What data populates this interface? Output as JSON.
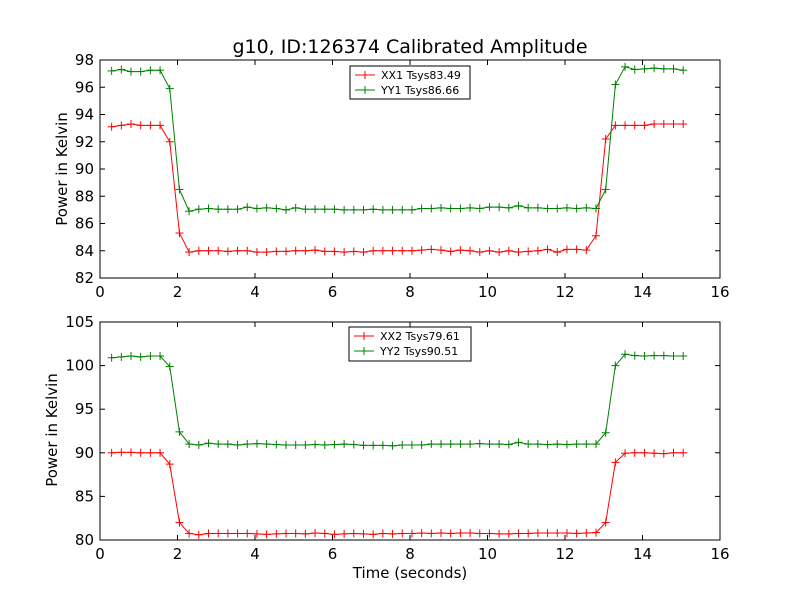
{
  "chart_data": [
    {
      "type": "line",
      "title": "g10, ID:126374 Calibrated Amplitude",
      "xlabel": "",
      "ylabel": "Power in Kelvin",
      "xlim": [
        0,
        16
      ],
      "ylim": [
        82,
        98
      ],
      "xticks": [
        "0",
        "2",
        "4",
        "6",
        "8",
        "10",
        "12",
        "14",
        "16"
      ],
      "yticks": [
        "82",
        "84",
        "86",
        "88",
        "90",
        "92",
        "94",
        "96",
        "98"
      ],
      "legend_position": "top-center",
      "x": [
        0.3,
        0.55,
        0.8,
        1.05,
        1.3,
        1.55,
        1.8,
        2.05,
        2.3,
        2.55,
        2.8,
        3.05,
        3.3,
        3.55,
        3.8,
        4.05,
        4.3,
        4.55,
        4.8,
        5.05,
        5.3,
        5.55,
        5.8,
        6.05,
        6.3,
        6.55,
        6.8,
        7.05,
        7.3,
        7.55,
        7.8,
        8.05,
        8.3,
        8.55,
        8.8,
        9.05,
        9.3,
        9.55,
        9.8,
        10.05,
        10.3,
        10.55,
        10.8,
        11.05,
        11.3,
        11.55,
        11.8,
        12.05,
        12.3,
        12.55,
        12.8,
        13.05,
        13.3,
        13.55,
        13.8,
        14.05,
        14.3,
        14.55,
        14.8,
        15.05
      ],
      "series": [
        {
          "name": "XX1 Tsys83.49",
          "color": "#ff0000",
          "values": [
            93.1,
            93.2,
            93.3,
            93.2,
            93.2,
            93.2,
            92.0,
            85.3,
            83.9,
            84.0,
            84.0,
            84.0,
            83.95,
            84.0,
            84.0,
            83.9,
            83.9,
            83.95,
            83.95,
            84.0,
            84.0,
            84.05,
            83.95,
            83.95,
            83.9,
            83.95,
            83.9,
            84.0,
            84.0,
            84.0,
            84.0,
            84.0,
            84.05,
            84.1,
            84.05,
            83.95,
            84.05,
            84.0,
            83.9,
            84.0,
            83.9,
            84.0,
            83.9,
            83.95,
            84.0,
            84.1,
            83.9,
            84.1,
            84.1,
            84.05,
            85.1,
            92.2,
            93.2,
            93.2,
            93.2,
            93.2,
            93.3,
            93.3,
            93.3,
            93.3
          ]
        },
        {
          "name": "YY1 Tsys86.66",
          "color": "#008000",
          "values": [
            97.2,
            97.3,
            97.15,
            97.15,
            97.25,
            97.25,
            95.9,
            88.5,
            86.9,
            87.05,
            87.1,
            87.05,
            87.05,
            87.05,
            87.2,
            87.1,
            87.15,
            87.1,
            87.0,
            87.15,
            87.05,
            87.05,
            87.05,
            87.05,
            87.0,
            87.0,
            87.0,
            87.05,
            87.0,
            87.0,
            87.0,
            87.0,
            87.1,
            87.1,
            87.15,
            87.1,
            87.1,
            87.15,
            87.1,
            87.2,
            87.2,
            87.15,
            87.3,
            87.15,
            87.15,
            87.1,
            87.1,
            87.15,
            87.1,
            87.15,
            87.1,
            88.5,
            96.2,
            97.5,
            97.3,
            97.35,
            97.4,
            97.35,
            97.35,
            97.25
          ]
        }
      ]
    },
    {
      "type": "line",
      "title": "",
      "xlabel": "Time (seconds)",
      "ylabel": "Power in Kelvin",
      "xlim": [
        0,
        16
      ],
      "ylim": [
        80,
        105
      ],
      "xticks": [
        "0",
        "2",
        "4",
        "6",
        "8",
        "10",
        "12",
        "14",
        "16"
      ],
      "yticks": [
        "80",
        "85",
        "90",
        "95",
        "100",
        "105"
      ],
      "legend_position": "top-center",
      "x": [
        0.3,
        0.55,
        0.8,
        1.05,
        1.3,
        1.55,
        1.8,
        2.05,
        2.3,
        2.55,
        2.8,
        3.05,
        3.3,
        3.55,
        3.8,
        4.05,
        4.3,
        4.55,
        4.8,
        5.05,
        5.3,
        5.55,
        5.8,
        6.05,
        6.3,
        6.55,
        6.8,
        7.05,
        7.3,
        7.55,
        7.8,
        8.05,
        8.3,
        8.55,
        8.8,
        9.05,
        9.3,
        9.55,
        9.8,
        10.05,
        10.3,
        10.55,
        10.8,
        11.05,
        11.3,
        11.55,
        11.8,
        12.05,
        12.3,
        12.55,
        12.8,
        13.05,
        13.3,
        13.55,
        13.8,
        14.05,
        14.3,
        14.55,
        14.8,
        15.05
      ],
      "series": [
        {
          "name": "XX2 Tsys79.61",
          "color": "#ff0000",
          "values": [
            90.0,
            90.05,
            90.05,
            90.0,
            90.0,
            90.0,
            88.7,
            82.0,
            80.75,
            80.6,
            80.75,
            80.75,
            80.75,
            80.75,
            80.75,
            80.7,
            80.65,
            80.7,
            80.75,
            80.75,
            80.7,
            80.8,
            80.75,
            80.65,
            80.7,
            80.75,
            80.7,
            80.65,
            80.75,
            80.7,
            80.75,
            80.75,
            80.8,
            80.75,
            80.8,
            80.75,
            80.8,
            80.8,
            80.75,
            80.75,
            80.7,
            80.7,
            80.75,
            80.75,
            80.8,
            80.8,
            80.8,
            80.8,
            80.75,
            80.8,
            80.85,
            82.0,
            88.9,
            89.95,
            90.0,
            90.0,
            89.95,
            89.9,
            90.0,
            90.0
          ]
        },
        {
          "name": "YY2 Tsys90.51",
          "color": "#008000",
          "values": [
            100.9,
            101.0,
            101.1,
            101.0,
            101.1,
            101.1,
            99.9,
            92.4,
            91.0,
            90.9,
            91.1,
            91.0,
            91.0,
            90.9,
            91.0,
            91.05,
            91.0,
            90.95,
            90.9,
            90.9,
            90.9,
            90.95,
            90.9,
            90.95,
            91.0,
            90.95,
            90.85,
            90.85,
            90.85,
            90.8,
            90.9,
            90.9,
            90.9,
            91.0,
            91.0,
            91.0,
            91.0,
            91.0,
            91.05,
            91.0,
            91.0,
            90.95,
            91.2,
            91.0,
            91.0,
            90.95,
            91.0,
            90.95,
            91.0,
            91.0,
            91.0,
            92.3,
            100.0,
            101.3,
            101.15,
            101.1,
            101.15,
            101.15,
            101.1,
            101.1
          ]
        }
      ]
    }
  ]
}
